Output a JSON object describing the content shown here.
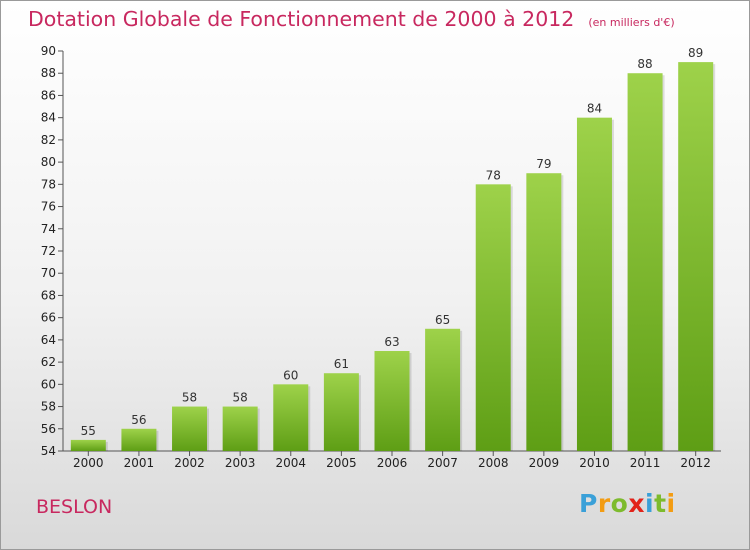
{
  "title": "Dotation Globale de Fonctionnement de 2000 à 2012",
  "subtitle": "(en milliers d'€)",
  "commune": "BESLON",
  "logo": {
    "letters": [
      "P",
      "r",
      "o",
      "x",
      "i",
      "t",
      "i"
    ],
    "colors": [
      "#3aa0d8",
      "#f39c12",
      "#7dbb2d",
      "#e2231a",
      "#3aa0d8",
      "#7dbb2d",
      "#f39c12"
    ]
  },
  "colors": {
    "accent": "#c8285f",
    "bar_top": "#9ed24a",
    "bar_bottom": "#5e9e15"
  },
  "chart_data": {
    "type": "bar",
    "categories": [
      "2000",
      "2001",
      "2002",
      "2003",
      "2004",
      "2005",
      "2006",
      "2007",
      "2008",
      "2009",
      "2010",
      "2011",
      "2012"
    ],
    "values": [
      55,
      56,
      58,
      58,
      60,
      61,
      63,
      65,
      78,
      79,
      84,
      88,
      89
    ],
    "title": "Dotation Globale de Fonctionnement de 2000 à 2012",
    "subtitle": "(en milliers d'€)",
    "xlabel": "",
    "ylabel": "",
    "ylim": [
      54,
      90
    ],
    "yticks": [
      54,
      56,
      58,
      60,
      62,
      64,
      66,
      68,
      70,
      72,
      74,
      76,
      78,
      80,
      82,
      84,
      86,
      88,
      90
    ],
    "grid": false,
    "data_labels": true
  }
}
